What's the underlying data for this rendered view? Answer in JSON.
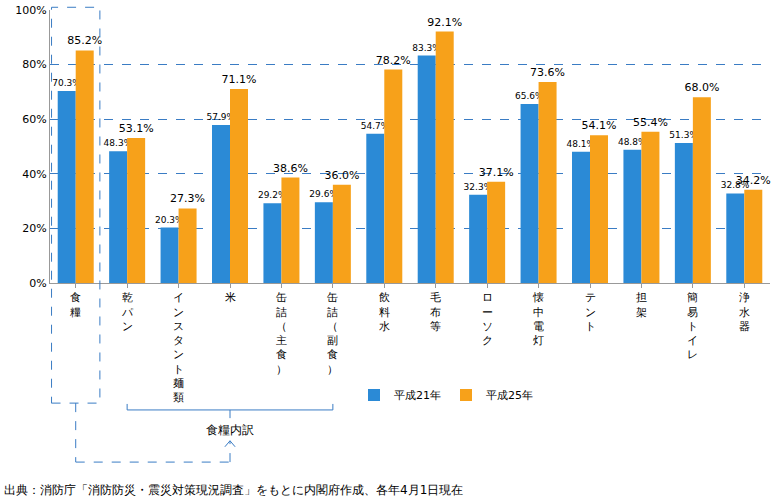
{
  "chart_data": {
    "type": "bar",
    "categories": [
      "食糧",
      "乾パン",
      "インスタント麺類",
      "米",
      "缶詰（主食）",
      "缶詰（副食）",
      "飲料水",
      "毛布等",
      "ローソク",
      "懐中電灯",
      "テント",
      "担架",
      "簡易トイレ",
      "浄水器"
    ],
    "series": [
      {
        "name": "平成21年",
        "color": "#2b8ad6",
        "values": [
          70.3,
          48.3,
          20.3,
          57.9,
          29.2,
          29.6,
          54.7,
          83.3,
          32.3,
          65.6,
          48.1,
          48.8,
          51.3,
          32.8
        ],
        "value_labels": [
          "70.3%",
          "48.3%",
          "20.3%",
          "57.9%",
          "29.2%",
          "29.6%",
          "54.7%",
          "83.3%",
          "32.3%",
          "65.6%",
          "48.1%",
          "48.8%",
          "51.3%",
          "32.8%"
        ]
      },
      {
        "name": "平成25年",
        "color": "#f7a11a",
        "values": [
          85.2,
          53.1,
          27.3,
          71.1,
          38.6,
          36.0,
          78.2,
          92.1,
          37.1,
          73.6,
          54.1,
          55.4,
          68.0,
          34.2
        ],
        "value_labels": [
          "85.2%",
          "53.1%",
          "27.3%",
          "71.1%",
          "38.6%",
          "36.0%",
          "78.2%",
          "92.1%",
          "37.1%",
          "73.6%",
          "54.1%",
          "55.4%",
          "68.0%",
          "34.2%"
        ]
      }
    ],
    "ylim": [
      0,
      100
    ],
    "yticks": [
      {
        "value": 0,
        "label": "0%"
      },
      {
        "value": 20,
        "label": "20%"
      },
      {
        "value": 40,
        "label": "40%"
      },
      {
        "value": 60,
        "label": "60%"
      },
      {
        "value": 80,
        "label": "80%"
      },
      {
        "value": 100,
        "label": "100%"
      }
    ],
    "grid": true,
    "data_labels": true,
    "legend": "bottom",
    "annotations": [
      "食糧内訳",
      "出典：消防庁「消防防災・震災対策現況調査」をもとに内閣府作成、各年4月1日現在"
    ]
  }
}
